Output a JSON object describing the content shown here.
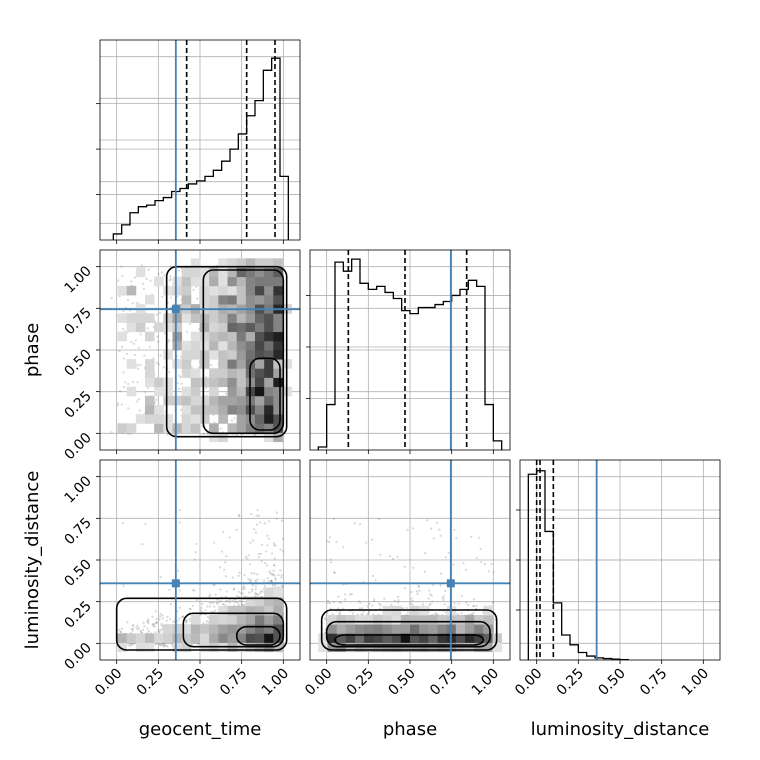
{
  "chart_data": {
    "type": "corner",
    "parameters": [
      "geocent_time",
      "phase",
      "luminosity_distance"
    ],
    "axis_range": [
      -0.1,
      1.1
    ],
    "ticks": [
      0.0,
      0.25,
      0.5,
      0.75,
      1.0
    ],
    "tick_labels": [
      "0.00",
      "0.25",
      "0.50",
      "0.75",
      "1.00"
    ],
    "truth_values": [
      0.355,
      0.745,
      0.36
    ],
    "truth_color": "#4682b4",
    "grid": true,
    "histograms": [
      {
        "parameter": "geocent_time",
        "bin_edges": [
          -0.02,
          0.03,
          0.08,
          0.13,
          0.18,
          0.23,
          0.28,
          0.33,
          0.38,
          0.43,
          0.48,
          0.53,
          0.58,
          0.63,
          0.68,
          0.73,
          0.78,
          0.83,
          0.88,
          0.93,
          0.98,
          1.03
        ],
        "counts": [
          0.2,
          0.5,
          0.9,
          1.1,
          1.15,
          1.3,
          1.4,
          1.6,
          1.7,
          1.85,
          1.95,
          2.1,
          2.3,
          2.6,
          3.0,
          3.5,
          4.1,
          4.6,
          5.6,
          6.0,
          2.1
        ],
        "quantiles": [
          0.42,
          0.78,
          0.95
        ]
      },
      {
        "parameter": "phase",
        "bin_edges": [
          -0.05,
          0.0,
          0.05,
          0.1,
          0.15,
          0.2,
          0.25,
          0.3,
          0.35,
          0.4,
          0.45,
          0.5,
          0.55,
          0.6,
          0.65,
          0.7,
          0.75,
          0.8,
          0.85,
          0.9,
          0.95,
          1.0,
          1.05
        ],
        "counts": [
          0.1,
          1.5,
          6.2,
          5.9,
          6.3,
          5.5,
          5.3,
          5.4,
          5.2,
          5.0,
          4.6,
          4.5,
          4.7,
          4.7,
          4.8,
          4.9,
          5.1,
          5.3,
          5.6,
          5.4,
          1.5,
          0.3
        ],
        "quantiles": [
          0.13,
          0.47,
          0.84
        ]
      },
      {
        "parameter": "luminosity_distance",
        "bin_edges": [
          -0.05,
          0.0,
          0.05,
          0.1,
          0.15,
          0.2,
          0.25,
          0.3,
          0.35,
          0.4,
          0.45,
          0.5,
          0.55
        ],
        "counts": [
          10.4,
          10.6,
          7.2,
          3.2,
          1.4,
          0.85,
          0.42,
          0.22,
          0.12,
          0.08,
          0.05,
          0.02
        ],
        "quantiles": [
          0.0,
          0.02,
          0.1
        ]
      }
    ],
    "pairs": [
      {
        "x": "geocent_time",
        "y": "phase",
        "description": "dense region at geocent_time 0.3-1.0 across phase 0-1, highest density near geocent_time 0.95 and phase 0.05",
        "density_center": [
          0.95,
          0.06
        ],
        "contour_levels": 3
      },
      {
        "x": "geocent_time",
        "y": "luminosity_distance",
        "description": "mass concentrated at luminosity_distance 0-0.2, rising with geocent_time, peak near geocent_time 0.93",
        "density_center": [
          0.93,
          0.02
        ],
        "contour_levels": 3
      },
      {
        "x": "phase",
        "y": "luminosity_distance",
        "description": "horizontal band at luminosity_distance 0-0.15 spanning phase 0-1",
        "density_center": [
          0.5,
          0.03
        ],
        "contour_levels": 3
      }
    ]
  }
}
